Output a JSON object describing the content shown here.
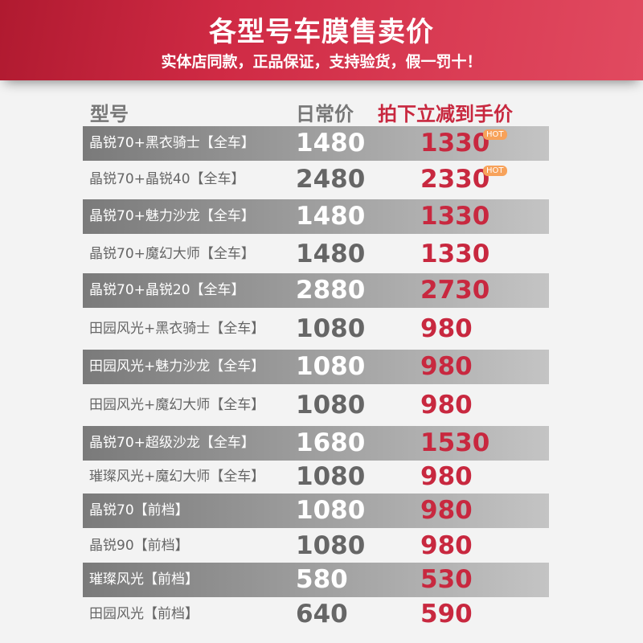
{
  "banner": {
    "title": "各型号车膜售卖价",
    "subtitle": "实体店同款，正品保证，支持验货，假一罚十！"
  },
  "headers": {
    "model": "型号",
    "regular": "日常价",
    "discount": "拍下立减到手价"
  },
  "hot_label": "HOT",
  "colors": {
    "accent": "#c8283f",
    "banner": "#cf2a44"
  },
  "rows": [
    {
      "model": "晶锐70+黑衣骑士【全车】",
      "regular": "1480",
      "discount": "1330",
      "hot": true
    },
    {
      "model": "晶锐70+晶锐40【全车】",
      "regular": "2480",
      "discount": "2330",
      "hot": true
    },
    {
      "model": "晶锐70+魅力沙龙【全车】",
      "regular": "1480",
      "discount": "1330"
    },
    {
      "model": "晶锐70+魔幻大师【全车】",
      "regular": "1480",
      "discount": "1330"
    },
    {
      "model": "晶锐70+晶锐20【全车】",
      "regular": "2880",
      "discount": "2730"
    },
    {
      "model": "田园风光+黑衣骑士【全车】",
      "regular": "1080",
      "discount": "980"
    },
    {
      "model": "田园风光+魅力沙龙【全车】",
      "regular": "1080",
      "discount": "980"
    },
    {
      "model": "田园风光+魔幻大师【全车】",
      "regular": "1080",
      "discount": "980"
    },
    {
      "model": "晶锐70+超级沙龙【全车】",
      "regular": "1680",
      "discount": "1530"
    },
    {
      "model": "璀璨风光+魔幻大师【全车】",
      "regular": "1080",
      "discount": "980"
    },
    {
      "model": "晶锐70【前档】",
      "regular": "1080",
      "discount": "980"
    },
    {
      "model": "晶锐90【前档】",
      "regular": "1080",
      "discount": "980"
    },
    {
      "model": "璀璨风光【前档】",
      "regular": "580",
      "discount": "530"
    },
    {
      "model": "田园风光【前档】",
      "regular": "640",
      "discount": "590"
    }
  ]
}
